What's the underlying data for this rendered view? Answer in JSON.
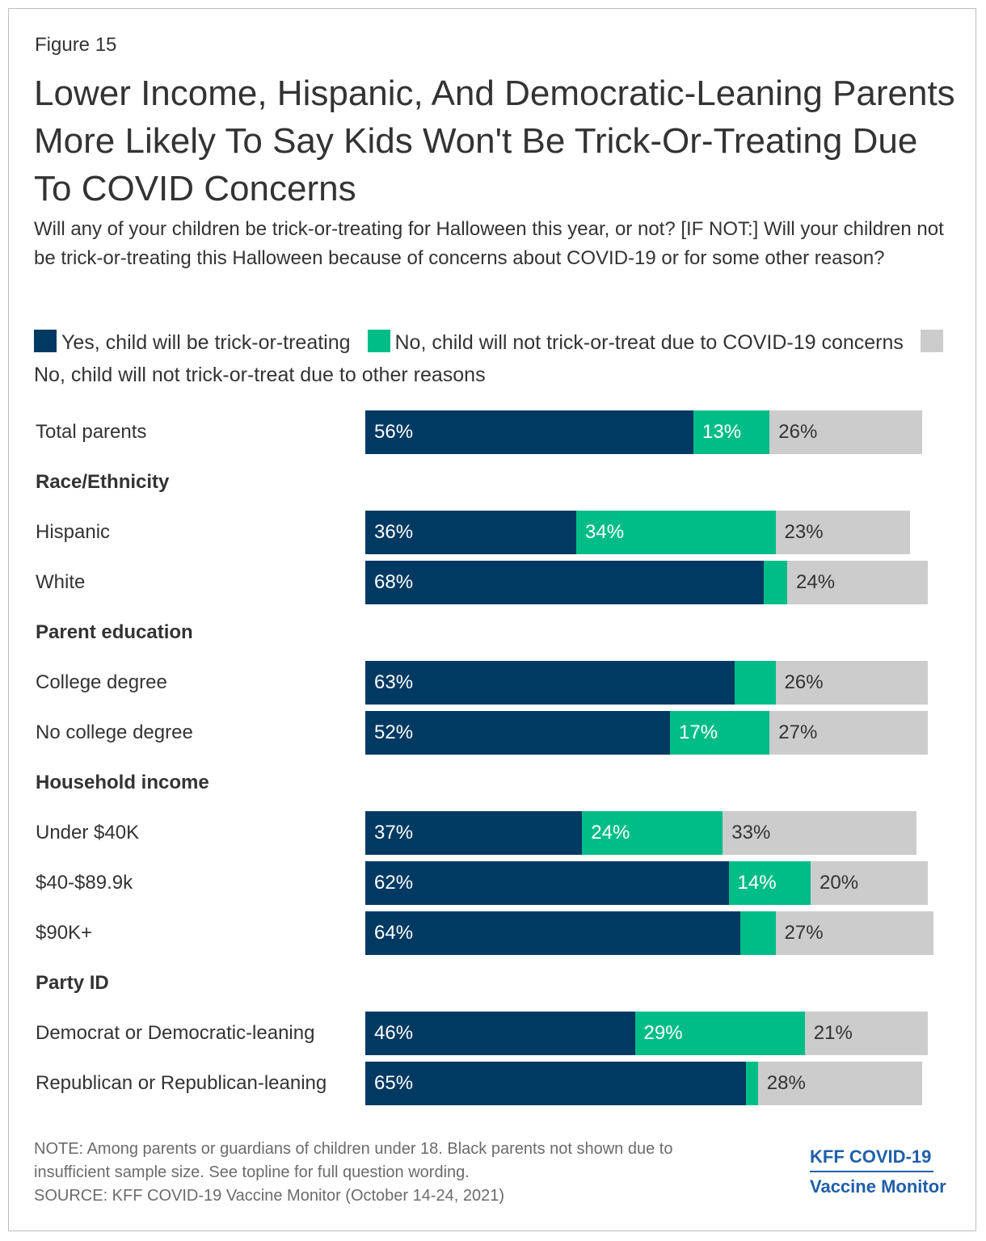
{
  "figure_label": "Figure 15",
  "title": "Lower Income, Hispanic, And Democratic-Leaning Parents More Likely To Say Kids Won't Be Trick-Or-Treating Due To COVID Concerns",
  "subtitle": "Will any of your children be trick-or-treating for Halloween this year, or not? [IF NOT:] Will your children not be trick-or-treating this Halloween because of concerns about COVID-19 or for some other reason?",
  "colors": {
    "yes": "#003a63",
    "covid": "#00bd87",
    "other": "#cccccc",
    "text_dark": "#ffffff",
    "text_light": "#333333"
  },
  "note_line1": "NOTE: Among parents or guardians of children under 18. Black parents not shown due to",
  "note_line2": "insufficient sample size. See topline for full question wording.",
  "source": "SOURCE: KFF COVID-19 Vaccine Monitor (October 14-24, 2021)",
  "logo_line1": "KFF COVID-19",
  "logo_line2": "Vaccine Monitor",
  "chart_data": {
    "type": "bar",
    "orientation": "horizontal",
    "stacked": true,
    "xlim": [
      0,
      100
    ],
    "series": [
      {
        "name": "Yes, child will be trick-or-treating",
        "color": "#003a63"
      },
      {
        "name": "No, child will not trick-or-treat due to COVID-19 concerns",
        "color": "#00bd87"
      },
      {
        "name": "No, child will not trick-or-treat due to other reasons",
        "color": "#cccccc"
      }
    ],
    "rows": [
      {
        "kind": "row",
        "label": "Total parents",
        "values": [
          56,
          13,
          26
        ],
        "labels": [
          "56%",
          "13%",
          "26%"
        ]
      },
      {
        "kind": "group",
        "label": "Race/Ethnicity"
      },
      {
        "kind": "row",
        "label": "Hispanic",
        "values": [
          36,
          34,
          23
        ],
        "labels": [
          "36%",
          "34%",
          "23%"
        ]
      },
      {
        "kind": "row",
        "label": "White",
        "values": [
          68,
          4,
          24
        ],
        "labels": [
          "68%",
          "",
          "24%"
        ]
      },
      {
        "kind": "group",
        "label": "Parent education"
      },
      {
        "kind": "row",
        "label": "College degree",
        "values": [
          63,
          7,
          26
        ],
        "labels": [
          "63%",
          "",
          "26%"
        ]
      },
      {
        "kind": "row",
        "label": "No college degree",
        "values": [
          52,
          17,
          27
        ],
        "labels": [
          "52%",
          "17%",
          "27%"
        ]
      },
      {
        "kind": "group",
        "label": "Household income"
      },
      {
        "kind": "row",
        "label": "Under $40K",
        "values": [
          37,
          24,
          33
        ],
        "labels": [
          "37%",
          "24%",
          "33%"
        ]
      },
      {
        "kind": "row",
        "label": "$40-$89.9k",
        "values": [
          62,
          14,
          20
        ],
        "labels": [
          "62%",
          "14%",
          "20%"
        ]
      },
      {
        "kind": "row",
        "label": "$90K+",
        "values": [
          64,
          6,
          27
        ],
        "labels": [
          "64%",
          "",
          "27%"
        ]
      },
      {
        "kind": "group",
        "label": "Party ID"
      },
      {
        "kind": "row",
        "label": "Democrat or Democratic-leaning",
        "values": [
          46,
          29,
          21
        ],
        "labels": [
          "46%",
          "29%",
          "21%"
        ]
      },
      {
        "kind": "row",
        "label": "Republican or Republican-leaning",
        "values": [
          65,
          2,
          28
        ],
        "labels": [
          "65%",
          "",
          "28%"
        ]
      }
    ]
  }
}
